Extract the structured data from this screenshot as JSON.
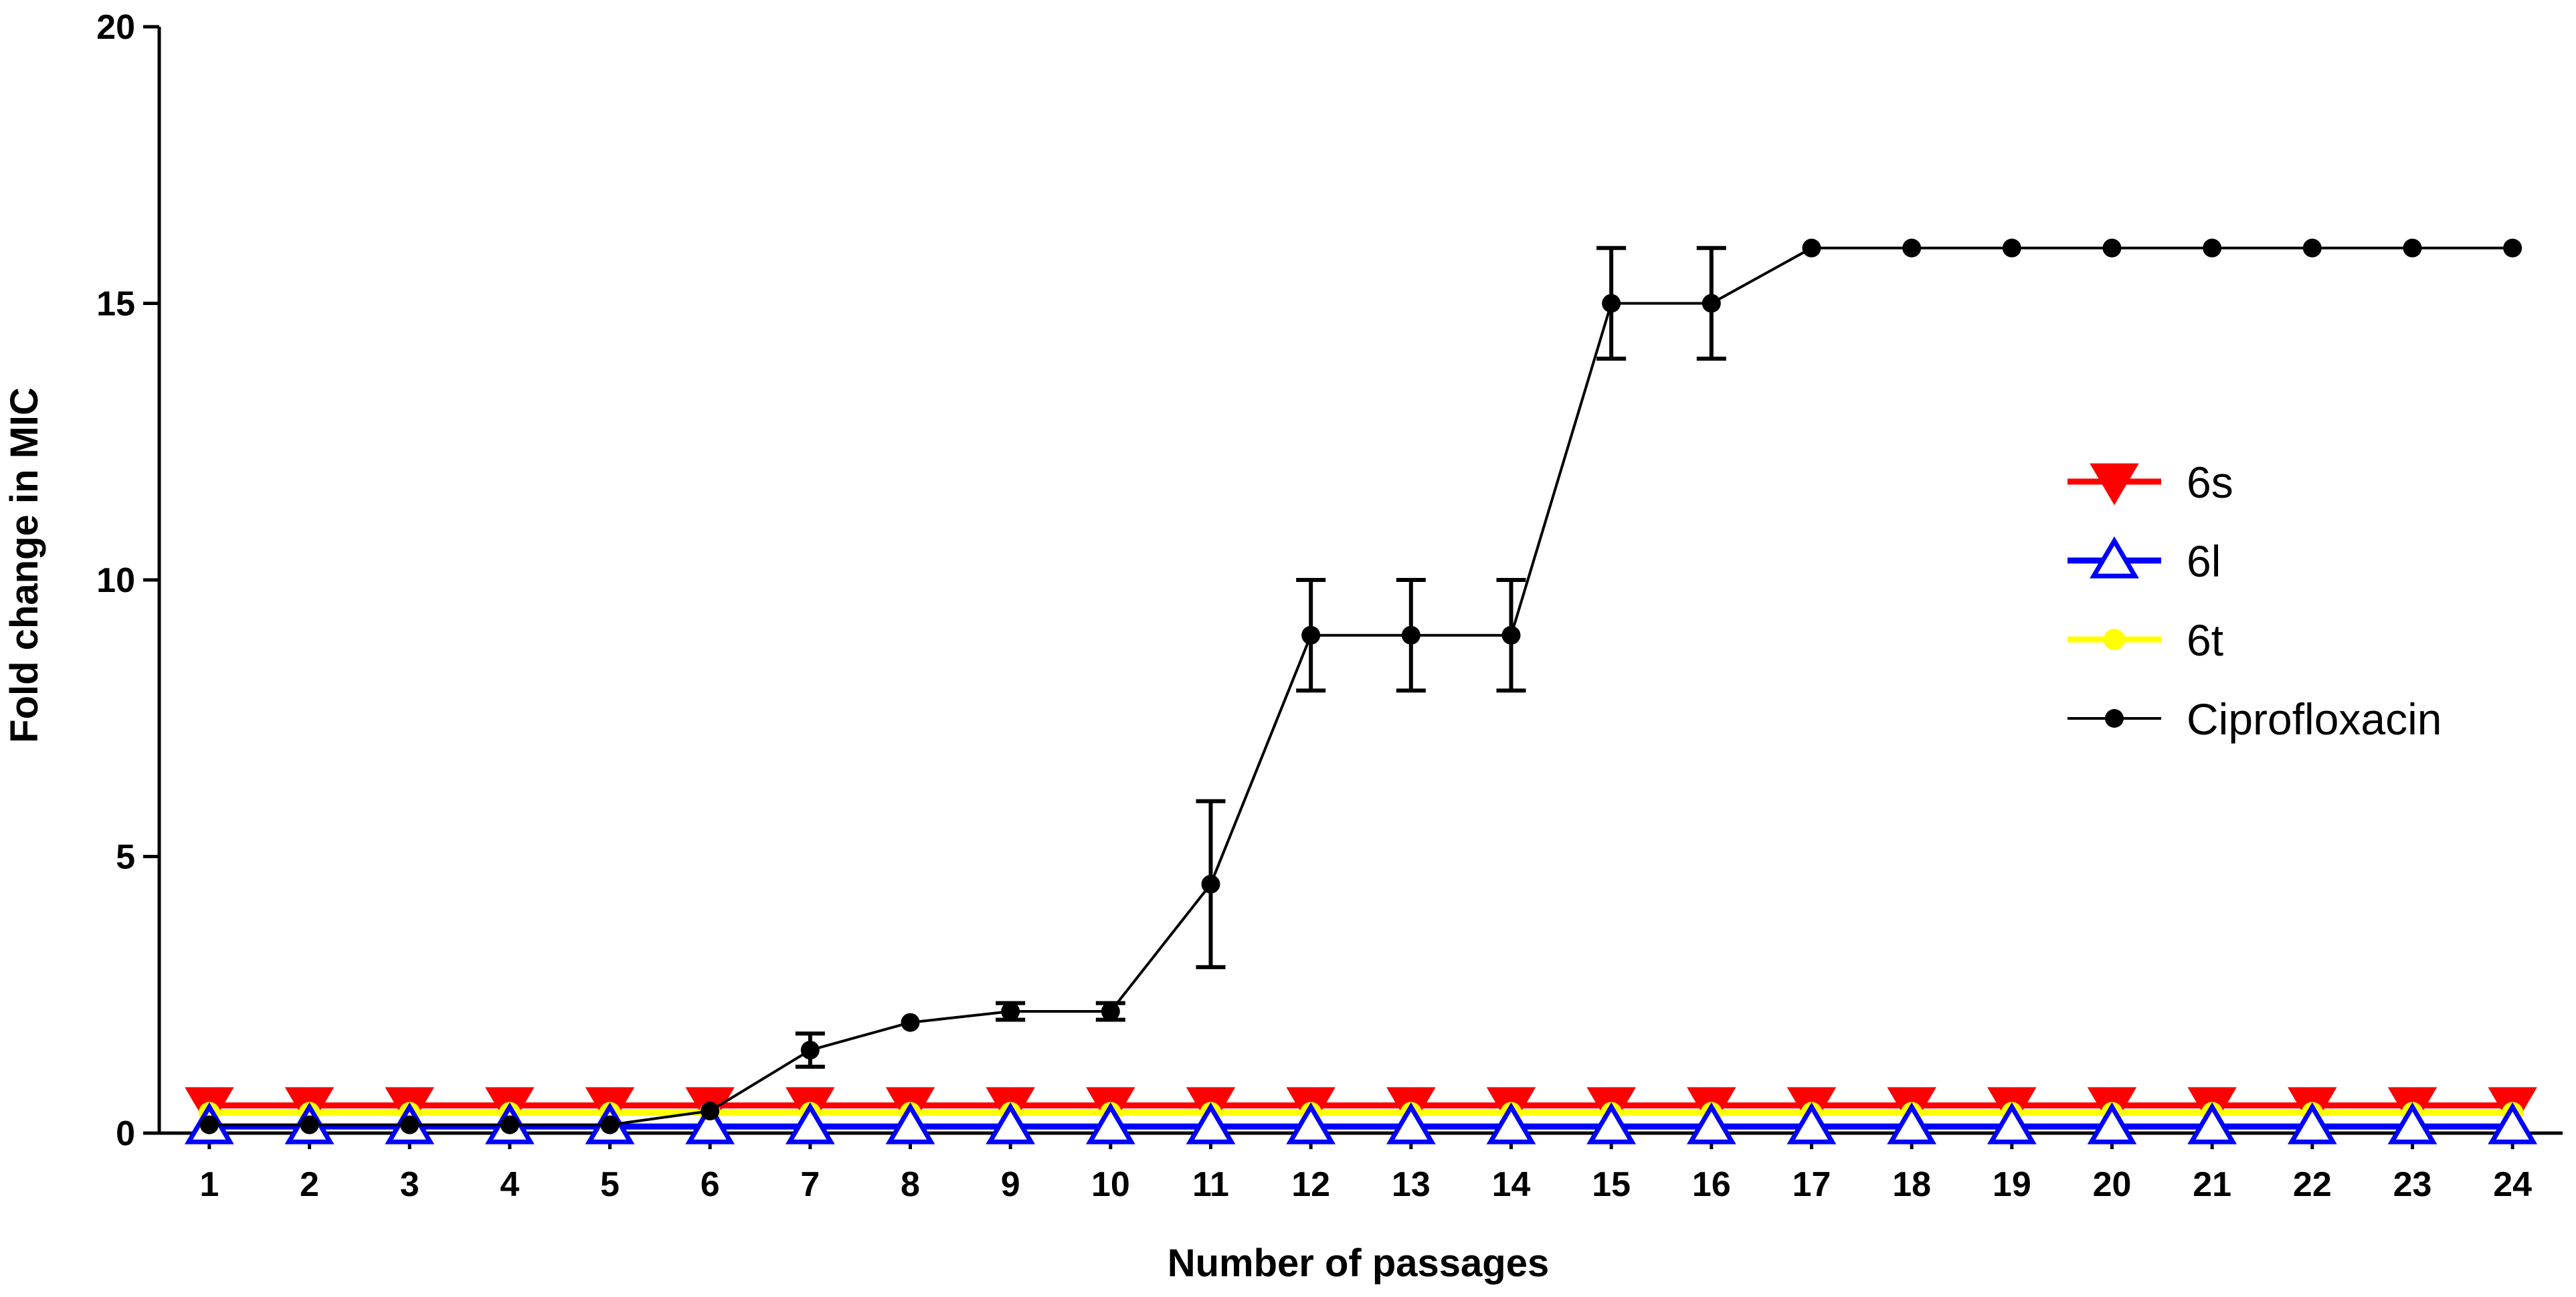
{
  "chart_data": {
    "type": "line",
    "title": "",
    "xlabel": "Number of passages",
    "ylabel": "Fold change in MIC",
    "xlim": [
      0.5,
      24.5
    ],
    "ylim": [
      0,
      20
    ],
    "x_ticks": [
      "1",
      "2",
      "3",
      "4",
      "5",
      "6",
      "7",
      "8",
      "9",
      "10",
      "11",
      "12",
      "13",
      "14",
      "15",
      "16",
      "17",
      "18",
      "19",
      "20",
      "21",
      "22",
      "23",
      "24"
    ],
    "y_ticks": [
      "0",
      "5",
      "10",
      "15",
      "20"
    ],
    "grid": false,
    "legend_position": "right",
    "x": [
      1,
      2,
      3,
      4,
      5,
      6,
      7,
      8,
      9,
      10,
      11,
      12,
      13,
      14,
      15,
      16,
      17,
      18,
      19,
      20,
      21,
      22,
      23,
      24
    ],
    "series": [
      {
        "name": "6s",
        "color": "#ff0000",
        "marker": "triangle-down",
        "values": [
          0.5,
          0.5,
          0.5,
          0.5,
          0.5,
          0.5,
          0.5,
          0.5,
          0.5,
          0.5,
          0.5,
          0.5,
          0.5,
          0.5,
          0.5,
          0.5,
          0.5,
          0.5,
          0.5,
          0.5,
          0.5,
          0.5,
          0.5,
          0.5
        ]
      },
      {
        "name": "6l",
        "color": "#0000ff",
        "marker": "triangle-up",
        "values": [
          0.12,
          0.12,
          0.12,
          0.12,
          0.12,
          0.12,
          0.12,
          0.12,
          0.12,
          0.12,
          0.12,
          0.12,
          0.12,
          0.12,
          0.12,
          0.12,
          0.12,
          0.12,
          0.12,
          0.12,
          0.12,
          0.12,
          0.12,
          0.12
        ]
      },
      {
        "name": "6t",
        "color": "#ffff00",
        "marker": "circle",
        "values": [
          0.37,
          0.37,
          0.37,
          0.37,
          0.37,
          0.37,
          0.37,
          0.37,
          0.37,
          0.37,
          0.37,
          0.37,
          0.37,
          0.37,
          0.37,
          0.37,
          0.37,
          0.37,
          0.37,
          0.37,
          0.37,
          0.37,
          0.37,
          0.37
        ]
      },
      {
        "name": "Ciprofloxacin",
        "color": "#000000",
        "marker": "circle",
        "values": [
          0.15,
          0.15,
          0.15,
          0.15,
          0.15,
          0.4,
          1.5,
          2,
          2.2,
          2.2,
          4.5,
          9,
          9,
          9,
          15,
          15,
          16,
          16,
          16,
          16,
          16,
          16,
          16,
          16
        ],
        "error": [
          0,
          0,
          0,
          0,
          0,
          0,
          0.3,
          0,
          0.15,
          0.15,
          1.5,
          1,
          1,
          1,
          1,
          1,
          0,
          0,
          0,
          0,
          0,
          0,
          0,
          0
        ]
      }
    ]
  }
}
